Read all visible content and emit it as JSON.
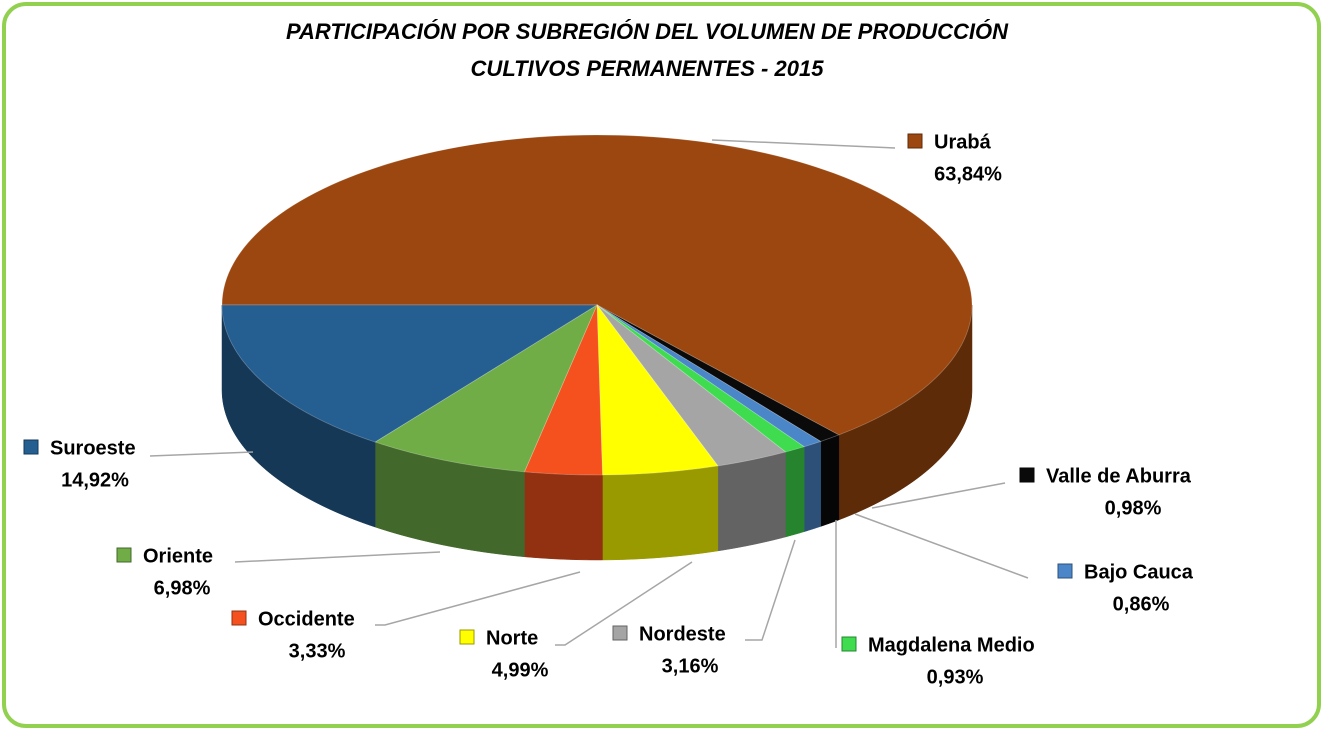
{
  "chart_data": {
    "type": "pie3d",
    "title": "PARTICIPACIÓN POR SUBREGIÓN DEL VOLUMEN DE PRODUCCIÓN",
    "subtitle": "CULTIVOS PERMANENTES - 2015",
    "categories": [
      "Urabá",
      "Valle de Aburra",
      "Bajo Cauca",
      "Magdalena Medio",
      "Nordeste",
      "Norte",
      "Occidente",
      "Oriente",
      "Suroeste"
    ],
    "values": [
      63.84,
      0.98,
      0.86,
      0.93,
      3.16,
      4.99,
      3.33,
      6.98,
      14.92
    ],
    "value_labels": [
      "63,84%",
      "0,98%",
      "0,86%",
      "0,93%",
      "3,16%",
      "4,99%",
      "3,33%",
      "6,98%",
      "14,92%"
    ],
    "colors": [
      "#9c470f",
      "#0a0a0a",
      "#4a86c8",
      "#3fdc4f",
      "#a5a5a5",
      "#ffff00",
      "#f4511e",
      "#70ad47",
      "#255e91"
    ]
  }
}
